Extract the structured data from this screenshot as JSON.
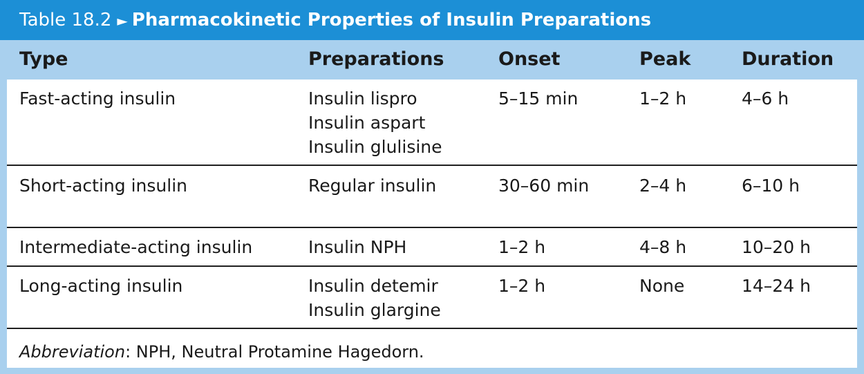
{
  "title": {
    "label": "Table 18.2",
    "arrow": "►",
    "caption": "Pharmacokinetic Properties of Insulin Preparations"
  },
  "columns": [
    "Type",
    "Preparations",
    "Onset",
    "Peak",
    "Duration"
  ],
  "rows": [
    {
      "type": "Fast-acting insulin",
      "preparations": [
        "Insulin lispro",
        "Insulin aspart",
        "Insulin glulisine"
      ],
      "onset": "5–15 min",
      "peak": "1–2 h",
      "duration": "4–6 h"
    },
    {
      "type": "Short-acting insulin",
      "preparations": [
        "Regular insulin"
      ],
      "onset": "30–60 min",
      "peak": "2–4 h",
      "duration": "6–10 h"
    },
    {
      "type": "Intermediate-acting insulin",
      "preparations": [
        "Insulin NPH"
      ],
      "onset": "1–2 h",
      "peak": "4–8 h",
      "duration": "10–20 h"
    },
    {
      "type": "Long-acting insulin",
      "preparations": [
        "Insulin detemir",
        "Insulin glargine"
      ],
      "onset": "1–2 h",
      "peak": "None",
      "duration": "14–24 h"
    }
  ],
  "footnote": {
    "label": "Abbreviation",
    "text": ": NPH, Neutral Protamine Hagedorn."
  },
  "colors": {
    "title_bar": "#1c8fd6",
    "header_band": "#a9d0ee",
    "body": "#ffffff"
  }
}
